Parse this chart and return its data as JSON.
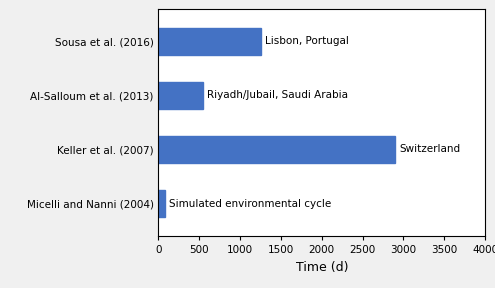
{
  "categories": [
    "Micelli and Nanni (2004)",
    "Keller et al. (2007)",
    "Al-Salloum et al. (2013)",
    "Sousa et al. (2016)"
  ],
  "values": [
    75,
    2900,
    550,
    1260
  ],
  "labels": [
    "Simulated environmental cycle",
    "Switzerland",
    "Riyadh/Jubail, Saudi Arabia",
    "Lisbon, Portugal"
  ],
  "bar_color": "#4472C4",
  "xlabel": "Time (d)",
  "xlim": [
    0,
    4000
  ],
  "xticks": [
    0,
    500,
    1000,
    1500,
    2000,
    2500,
    3000,
    3500,
    4000
  ],
  "figure_bg": "#f0f0f0",
  "axes_bg": "#ffffff",
  "label_fontsize": 7.5,
  "xlabel_fontsize": 9,
  "ytick_fontsize": 7.5,
  "xtick_fontsize": 7.5,
  "bar_height": 0.5
}
